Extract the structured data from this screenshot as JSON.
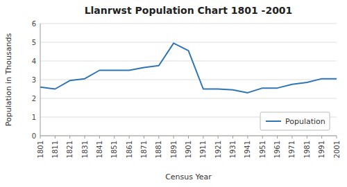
{
  "chart_data": {
    "type": "line",
    "title": "Llanrwst Population Chart 1801 -2001",
    "xlabel": "Census Year",
    "ylabel": "Population in Thousands",
    "x": [
      1801,
      1811,
      1821,
      1831,
      1841,
      1851,
      1861,
      1871,
      1881,
      1891,
      1901,
      1911,
      1921,
      1931,
      1941,
      1951,
      1961,
      1971,
      1981,
      1991,
      2001
    ],
    "series": [
      {
        "name": "Population",
        "color": "#2E75B6",
        "values": [
          2.6,
          2.5,
          2.95,
          3.05,
          3.5,
          3.5,
          3.5,
          3.65,
          3.75,
          4.95,
          4.55,
          2.5,
          2.5,
          2.45,
          2.3,
          2.55,
          2.55,
          2.75,
          2.85,
          3.05,
          3.05
        ]
      }
    ],
    "xlim": [
      1801,
      2001
    ],
    "xticks": [
      1801,
      1811,
      1821,
      1831,
      1841,
      1851,
      1861,
      1871,
      1881,
      1891,
      1901,
      1911,
      1921,
      1931,
      1941,
      1951,
      1961,
      1971,
      1981,
      1991,
      2001
    ],
    "ylim": [
      0,
      6
    ],
    "yticks": [
      0,
      1,
      2,
      3,
      4,
      5,
      6
    ],
    "grid": true,
    "legend": "lower right"
  }
}
